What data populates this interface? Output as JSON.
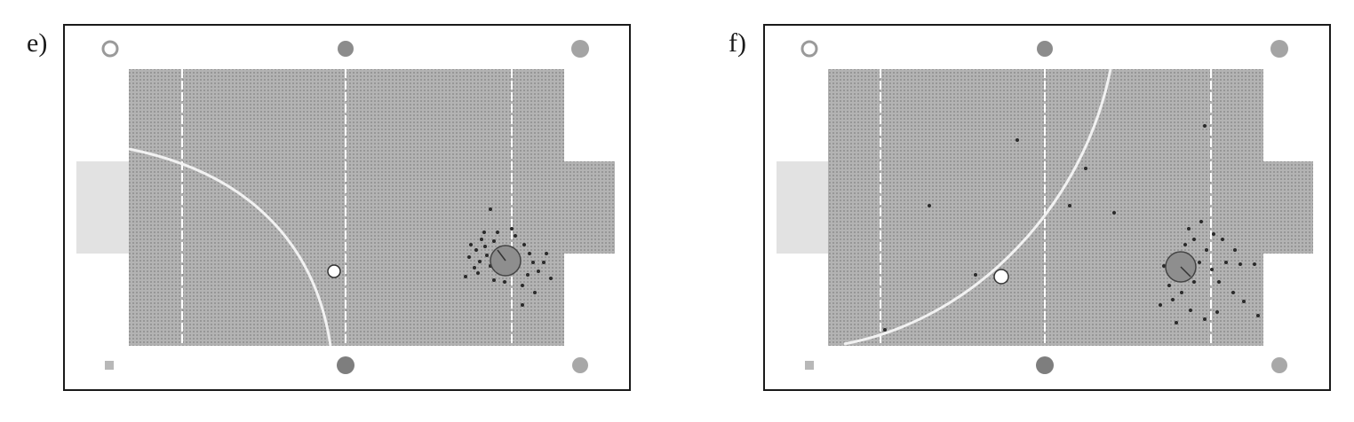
{
  "panels": [
    {
      "label": "e)",
      "field_color": "#a9a9a9",
      "goal_left_color": "#dcdcdc",
      "goal_right_color": "#b4b4b4",
      "curve": "quarter-arc-left",
      "markers": [
        "ring-top-left",
        "disc-top-center",
        "disc-top-right",
        "square-bottom-left",
        "disc-bottom-center",
        "disc-bottom-right"
      ]
    },
    {
      "label": "f)",
      "field_color": "#a9a9a9",
      "goal_left_color": "#dcdcdc",
      "goal_right_color": "#b4b4b4",
      "curve": "arc-sweep-right",
      "markers": [
        "ring-top-left",
        "disc-top-center",
        "disc-top-right",
        "square-bottom-left",
        "disc-bottom-center",
        "disc-bottom-right"
      ]
    }
  ]
}
